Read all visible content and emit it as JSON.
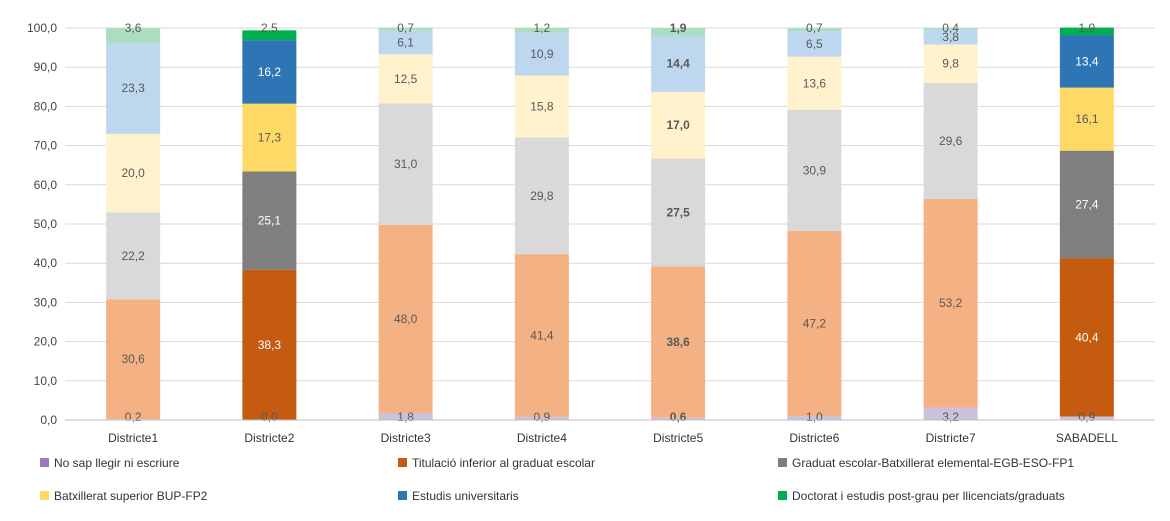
{
  "chart_data": {
    "type": "bar",
    "stacked": true,
    "grid": true,
    "legend_position": "bottom",
    "ylim": [
      0,
      100
    ],
    "yticks": [
      "0,0",
      "10,0",
      "20,0",
      "30,0",
      "40,0",
      "50,0",
      "60,0",
      "70,0",
      "80,0",
      "90,0",
      "100,0"
    ],
    "categories": [
      "Districte1",
      "Districte2",
      "Districte3",
      "Districte4",
      "Districte5",
      "Districte6",
      "Districte7",
      "SABADELL"
    ],
    "series": [
      {
        "name": "No sap llegir ni escriure",
        "values": [
          0.2,
          0.0,
          1.8,
          0.9,
          0.6,
          1.0,
          3.2,
          0.9
        ],
        "labels": [
          "0,2",
          "0,0",
          "1,8",
          "0,9",
          "0,6",
          "1,0",
          "3,2",
          "0,9"
        ],
        "color": "#9b7bbd"
      },
      {
        "name": "Titulació inferior al graduat escolar",
        "values": [
          30.6,
          38.3,
          48.0,
          41.4,
          38.6,
          47.2,
          53.2,
          40.4
        ],
        "labels": [
          "30,6",
          "38,3",
          "48,0",
          "41,4",
          "38,6",
          "47,2",
          "53,2",
          "40,4"
        ],
        "color": "#c55a11"
      },
      {
        "name": "Graduat escolar-Batxillerat elemental-EGB-ESO-FP1",
        "values": [
          22.2,
          25.1,
          31.0,
          29.8,
          27.5,
          30.9,
          29.6,
          27.4
        ],
        "labels": [
          "22,2",
          "25,1",
          "31,0",
          "29,8",
          "27,5",
          "30,9",
          "29,6",
          "27,4"
        ],
        "color": "#7f7f7f"
      },
      {
        "name": "Batxillerat superior BUP-FP2",
        "values": [
          20.0,
          17.3,
          12.5,
          15.8,
          17.0,
          13.6,
          9.8,
          16.1
        ],
        "labels": [
          "20,0",
          "17,3",
          "12,5",
          "15,8",
          "17,0",
          "13,6",
          "9,8",
          "16,1"
        ],
        "color": "#ffd966"
      },
      {
        "name": "Estudis universitaris",
        "values": [
          23.3,
          16.2,
          6.1,
          10.9,
          14.4,
          6.5,
          3.8,
          13.4
        ],
        "labels": [
          "23,3",
          "16,2",
          "6,1",
          "10,9",
          "14,4",
          "6,5",
          "3,8",
          "13,4"
        ],
        "color": "#2e75b6"
      },
      {
        "name": "Doctorat i estudis post-grau per llicenciats/graduats",
        "values": [
          3.6,
          2.5,
          0.7,
          1.2,
          1.9,
          0.7,
          0.4,
          1.9
        ],
        "labels": [
          "3,6",
          "2,5",
          "0,7",
          "1,2",
          "1,9",
          "0,7",
          "0,4",
          "1,9"
        ],
        "color": "#00b050"
      }
    ],
    "bar_colors": [
      [
        "#ccc0da",
        "#f4b183",
        "#d9d9d9",
        "#fff2cc",
        "#bdd7ee",
        "#a9dfbf"
      ],
      [
        "#ccc0da",
        "#c55a11",
        "#7f7f7f",
        "#ffd966",
        "#2e75b6",
        "#00b050"
      ],
      [
        "#ccc0da",
        "#f4b183",
        "#d9d9d9",
        "#fff2cc",
        "#bdd7ee",
        "#a9dfbf"
      ],
      [
        "#ccc0da",
        "#f4b183",
        "#d9d9d9",
        "#fff2cc",
        "#bdd7ee",
        "#a9dfbf"
      ],
      [
        "#ccc0da",
        "#f4b183",
        "#d9d9d9",
        "#fff2cc",
        "#bdd7ee",
        "#a9dfbf"
      ],
      [
        "#ccc0da",
        "#f4b183",
        "#d9d9d9",
        "#fff2cc",
        "#bdd7ee",
        "#a9dfbf"
      ],
      [
        "#ccc0da",
        "#f4b183",
        "#d9d9d9",
        "#fff2cc",
        "#bdd7ee",
        "#a9dfbf"
      ],
      [
        "#ccc0da",
        "#c55a11",
        "#7f7f7f",
        "#ffd966",
        "#2e75b6",
        "#00b050"
      ]
    ],
    "emphasized_labels": [
      [
        false,
        false,
        false,
        false,
        false,
        false
      ],
      [
        false,
        false,
        false,
        false,
        false,
        false
      ],
      [
        false,
        false,
        false,
        false,
        false,
        false
      ],
      [
        false,
        false,
        false,
        false,
        false,
        false
      ],
      [
        true,
        true,
        true,
        true,
        true,
        true
      ],
      [
        false,
        false,
        false,
        false,
        false,
        false
      ],
      [
        false,
        false,
        false,
        false,
        false,
        false
      ],
      [
        false,
        false,
        false,
        false,
        false,
        false
      ]
    ]
  }
}
